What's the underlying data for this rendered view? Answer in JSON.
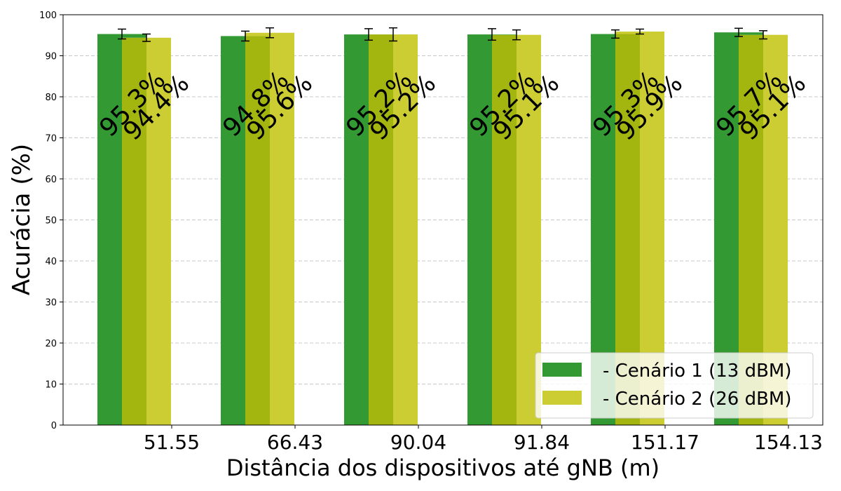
{
  "chart_data": {
    "type": "bar",
    "title": "",
    "xlabel": "Distância dos dispositivos até gNB (m)",
    "ylabel": "Acurácia (%)",
    "ylim": [
      0,
      100
    ],
    "yticks": [
      0,
      10,
      20,
      30,
      40,
      50,
      60,
      70,
      80,
      90,
      100
    ],
    "grid": "y-dashed",
    "legend_position": "bottom-right",
    "categories": [
      "51.55",
      "66.43",
      "90.04",
      "91.84",
      "151.17",
      "154.13"
    ],
    "series": [
      {
        "name": "- Cenário 1 (13 dBM)",
        "color": "#339933",
        "values": [
          95.3,
          94.8,
          95.2,
          95.2,
          95.3,
          95.7
        ],
        "errors": [
          1.2,
          1.2,
          1.4,
          1.4,
          1.0,
          1.0
        ],
        "labels": [
          "95.3%",
          "94.8%",
          "95.2%",
          "95.2%",
          "95.3%",
          "95.7%"
        ]
      },
      {
        "name": "- Cenário 2 (26 dBM)",
        "color": "#cccc33",
        "values": [
          94.4,
          95.6,
          95.2,
          95.1,
          95.9,
          95.1
        ],
        "errors": [
          0.9,
          1.2,
          1.6,
          1.2,
          0.6,
          1.0
        ],
        "labels": [
          "94.4%",
          "95.6%",
          "95.2%",
          "95.1%",
          "95.9%",
          "95.1%"
        ]
      }
    ]
  }
}
